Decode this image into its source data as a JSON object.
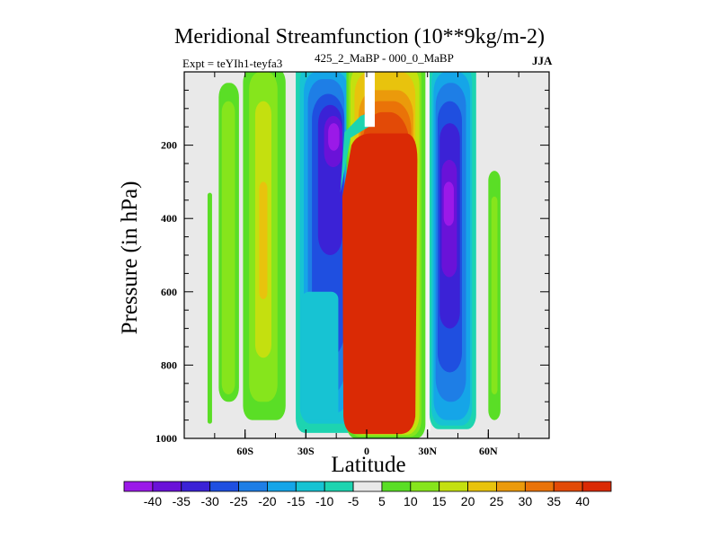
{
  "chart_data": {
    "type": "heatmap",
    "title": "Meridional Streamfunction (10**9kg/m-2)",
    "subtitle": "425_2_MaBP - 000_0_MaBP",
    "experiment": "Expt = teYIh1-teyfa3",
    "season": "JJA",
    "xlabel": "Latitude",
    "ylabel": "Pressure (in hPa)",
    "xlim": [
      -90,
      90
    ],
    "ylim": [
      1000,
      0
    ],
    "xticks": [
      {
        "value": -60,
        "label": "60S"
      },
      {
        "value": -30,
        "label": "30S"
      },
      {
        "value": 0,
        "label": "0"
      },
      {
        "value": 30,
        "label": "30N"
      },
      {
        "value": 60,
        "label": "60N"
      }
    ],
    "yticks": [
      200,
      400,
      600,
      800,
      1000
    ],
    "colorbar_levels": [
      -40,
      -35,
      -30,
      -25,
      -20,
      -15,
      -10,
      -5,
      5,
      10,
      15,
      20,
      25,
      30,
      35,
      40
    ],
    "colorbar_colors": [
      "#9b19e8",
      "#6a12d8",
      "#3b22d6",
      "#1f4fe0",
      "#1e7ee6",
      "#15a5e8",
      "#17c3d3",
      "#1dd4b0",
      "#e9e9e9",
      "#5ade26",
      "#86e51c",
      "#c4e00f",
      "#e8c30d",
      "#eb9a0b",
      "#ea7308",
      "#e24a07",
      "#da2a05"
    ],
    "features": [
      {
        "name": "tropical positive cell",
        "lat_range": [
          -8,
          26
        ],
        "p_range": [
          165,
          990
        ],
        "max": 40,
        "level_index": 16
      },
      {
        "name": "northern subtropical negative cell",
        "lat_range": [
          32,
          52
        ],
        "p_range": [
          0,
          970
        ],
        "min": -35,
        "level_index": 1
      },
      {
        "name": "southern subtropical negative cell",
        "lat_range": [
          -35,
          -5
        ],
        "p_range": [
          0,
          980
        ],
        "min": -40,
        "level_index": 0
      },
      {
        "name": "southern midlatitude positive cell",
        "lat_range": [
          -60,
          -40
        ],
        "p_range": [
          0,
          950
        ],
        "max": 25,
        "level_index": 12
      },
      {
        "name": "southern high latitude positive band",
        "lat_range": [
          -73,
          -63
        ],
        "p_range": [
          50,
          900
        ],
        "max": 10,
        "level_index": 9
      },
      {
        "name": "northern high latitude positive band",
        "lat_range": [
          60,
          66
        ],
        "p_range": [
          280,
          950
        ],
        "max": 10,
        "level_index": 9
      }
    ]
  }
}
